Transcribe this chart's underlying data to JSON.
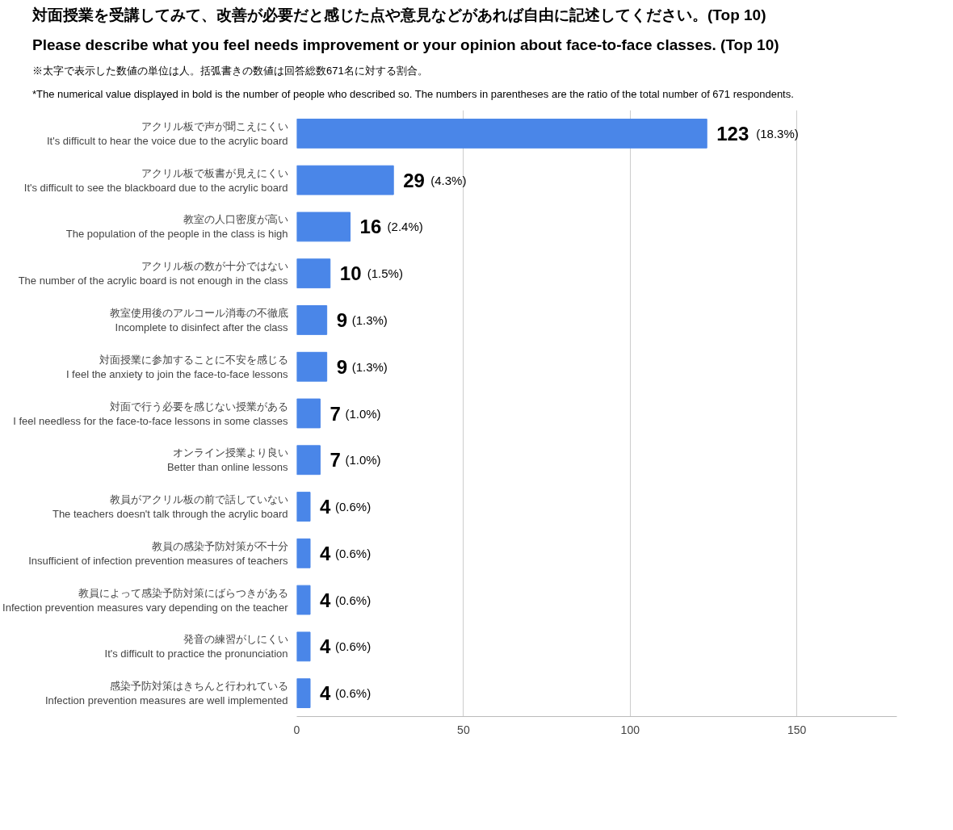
{
  "chart_data": {
    "type": "bar",
    "orientation": "horizontal",
    "title": "対面授業を受講してみて、改善が必要だと感じた点や意見などがあれば自由に記述してください。(Top 10)",
    "subtitle": "Please describe what you feel needs improvement or your opinion about face-to-face classes. (Top 10)",
    "annotations": [
      "※太字で表示した数値の単位は人。括弧書きの数値は回答総数671名に対する割合。",
      "*The numerical value displayed in bold is the number of people who described so. The numbers in parentheses are the ratio of the total number of 671 respondents."
    ],
    "categories": [
      "アクリル板で声が聞こえにくい\nIt's difficult to hear the voice due to the acrylic board",
      "アクリル板で板書が見えにくい\nIt's difficult to see the blackboard due to the acrylic board",
      "教室の人口密度が高い\nThe population of the people in the class is high",
      "アクリル板の数が十分ではない\nThe number of the acrylic board is not enough in the class",
      "教室使用後のアルコール消毒の不徹底\nIncomplete to disinfect after the class",
      "対面授業に参加することに不安を感じる\nI feel the anxiety to join the face-to-face lessons",
      "対面で行う必要を感じない授業がある\nI feel needless for the face-to-face lessons in some classes",
      "オンライン授業より良い\nBetter than online lessons",
      "教員がアクリル板の前で話していない\nThe teachers doesn't talk through the acrylic board",
      "教員の感染予防対策が不十分\nInsufficient of infection prevention measures of teachers",
      "教員によって感染予防対策にばらつきがある\nInfection prevention measures vary depending on the teacher",
      "発音の練習がしにくい\nIt's difficult to practice the pronunciation",
      "感染予防対策はきちんと行われている\nInfection prevention measures are well implemented"
    ],
    "values": [
      123,
      29,
      16,
      10,
      9,
      9,
      7,
      7,
      4,
      4,
      4,
      4,
      4
    ],
    "value_labels": [
      "123 (18.3%)",
      "29 (4.3%)",
      "16 (2.4%)",
      "10 (1.5%)",
      "9 (1.3%)",
      "9 (1.3%)",
      "7 (1.0%)",
      "7 (1.0%)",
      "4 (0.6%)",
      "4 (0.6%)",
      "4 (0.6%)",
      "4 (0.6%)",
      "4 (0.6%)"
    ],
    "color": "#4a86e8",
    "xlim": [
      0,
      180
    ],
    "xticks": [
      0,
      50,
      100,
      150
    ],
    "grid": "x"
  }
}
